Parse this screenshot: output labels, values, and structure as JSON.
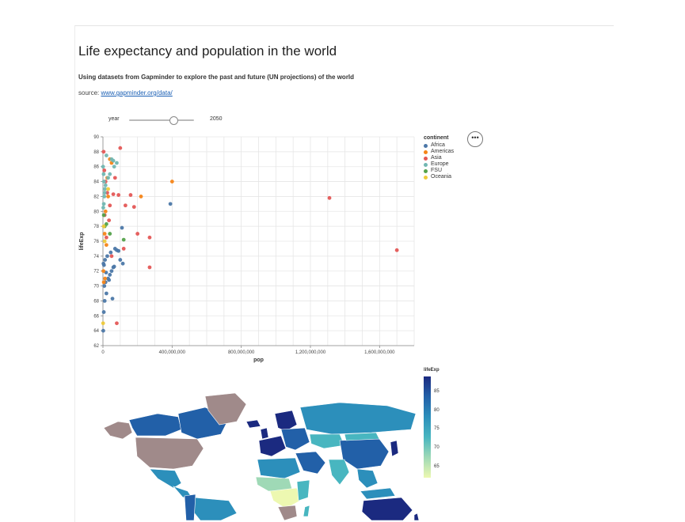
{
  "page": {
    "title": "Life expectancy and population in the world",
    "subtitle": "Using datasets from Gapminder to explore the past and future (UN projections) of the world",
    "source_prefix": "source: ",
    "source_link": "www.gapminder.org/data/"
  },
  "slider": {
    "label": "year",
    "value": "2050",
    "position_fraction": 0.68
  },
  "menu": {
    "label": "•••"
  },
  "colors": {
    "Africa": "#4c78a8",
    "Americas": "#f58518",
    "Asia": "#e45756",
    "Europe": "#72b7b2",
    "FSU": "#54a24b",
    "Oceania": "#eeca3b"
  },
  "chart_data": [
    {
      "type": "scatter",
      "xlabel": "pop",
      "ylabel": "lifeExp",
      "xlim": [
        0,
        1800000000
      ],
      "ylim": [
        62,
        90
      ],
      "x_ticks": [
        0,
        400000000,
        800000000,
        1200000000,
        1600000000
      ],
      "x_tick_labels": [
        "0",
        "400,000,000",
        "800,000,000",
        "1,200,000,000",
        "1,600,000,000"
      ],
      "y_ticks": [
        62,
        64,
        66,
        68,
        70,
        72,
        74,
        76,
        78,
        80,
        82,
        84,
        86,
        88,
        90
      ],
      "y_tick_labels": [
        "62",
        "64",
        "66",
        "68",
        "70",
        "72",
        "74",
        "76",
        "78",
        "80",
        "82",
        "84",
        "86",
        "88",
        "90"
      ],
      "grid": true,
      "legend": {
        "title": "continent",
        "placement": "right",
        "entries": [
          "Africa",
          "Americas",
          "Asia",
          "Europe",
          "FSU",
          "Oceania"
        ]
      },
      "series": [
        {
          "name": "Africa",
          "points": [
            [
              2000000,
              64.0
            ],
            [
              5000000,
              66.5
            ],
            [
              10000000,
              68
            ],
            [
              20000000,
              69
            ],
            [
              8000000,
              70
            ],
            [
              15000000,
              70.5
            ],
            [
              30000000,
              71
            ],
            [
              40000000,
              71.5
            ],
            [
              50000000,
              72
            ],
            [
              60000000,
              72.5
            ],
            [
              3000000,
              73
            ],
            [
              12000000,
              73.5
            ],
            [
              25000000,
              74
            ],
            [
              45000000,
              74.5
            ],
            [
              70000000,
              75
            ],
            [
              90000000,
              74.7
            ],
            [
              100000000,
              73.5
            ],
            [
              115000000,
              73
            ],
            [
              6000000,
              72.8
            ],
            [
              18000000,
              71.8
            ],
            [
              35000000,
              70.8
            ],
            [
              55000000,
              68.3
            ],
            [
              65000000,
              72.6
            ],
            [
              80000000,
              74.8
            ],
            [
              110000000,
              77.8
            ],
            [
              390000000,
              81
            ]
          ]
        },
        {
          "name": "Americas",
          "points": [
            [
              5000000,
              70.5
            ],
            [
              12000000,
              71
            ],
            [
              3000000,
              72
            ],
            [
              20000000,
              75.5
            ],
            [
              8000000,
              78
            ],
            [
              15000000,
              80
            ],
            [
              30000000,
              82
            ],
            [
              50000000,
              86.5
            ],
            [
              220000000,
              82
            ],
            [
              400000000,
              84
            ],
            [
              10000000,
              77
            ],
            [
              25000000,
              84.5
            ],
            [
              40000000,
              87
            ]
          ]
        },
        {
          "name": "Asia",
          "points": [
            [
              1310000000,
              81.8
            ],
            [
              1700000000,
              74.8
            ],
            [
              80000000,
              65
            ],
            [
              270000000,
              76.5
            ],
            [
              180000000,
              80.6
            ],
            [
              160000000,
              82.2
            ],
            [
              100000000,
              88.5
            ],
            [
              130000000,
              80.8
            ],
            [
              4000000,
              88
            ],
            [
              8000000,
              85.5
            ],
            [
              15000000,
              84
            ],
            [
              25000000,
              82.5
            ],
            [
              40000000,
              80.8
            ],
            [
              60000000,
              82.3
            ],
            [
              70000000,
              84.5
            ],
            [
              90000000,
              82.2
            ],
            [
              120000000,
              75
            ],
            [
              200000000,
              77
            ],
            [
              270000000,
              72.5
            ],
            [
              35000000,
              78.8
            ],
            [
              20000000,
              76.5
            ],
            [
              10000000,
              79.5
            ],
            [
              50000000,
              74
            ]
          ]
        },
        {
          "name": "Europe",
          "points": [
            [
              2000000,
              80.5
            ],
            [
              5000000,
              81
            ],
            [
              8000000,
              82
            ],
            [
              10000000,
              82.5
            ],
            [
              11000000,
              83
            ],
            [
              15000000,
              83.5
            ],
            [
              40000000,
              85
            ],
            [
              60000000,
              86.8
            ],
            [
              65000000,
              86
            ],
            [
              80000000,
              86.5
            ],
            [
              20000000,
              87.5
            ],
            [
              6000000,
              84
            ],
            [
              4000000,
              85
            ],
            [
              1000000,
              86
            ],
            [
              30000000,
              84.5
            ],
            [
              50000000,
              87
            ]
          ]
        },
        {
          "name": "FSU",
          "points": [
            [
              120000000,
              76.2
            ],
            [
              40000000,
              77
            ],
            [
              10000000,
              78
            ],
            [
              5000000,
              79.5
            ],
            [
              20000000,
              78.3
            ]
          ]
        },
        {
          "name": "Oceania",
          "points": [
            [
              1000000,
              65
            ],
            [
              30000000,
              83
            ],
            [
              5000000,
              78
            ],
            [
              10000000,
              76
            ]
          ]
        }
      ]
    },
    {
      "type": "choropleth",
      "legend": {
        "title": "lifeExp",
        "ticks": [
          85,
          80,
          75,
          70,
          65
        ],
        "tick_labels": [
          "85",
          "80",
          "75",
          "70",
          "65"
        ],
        "min": 62,
        "max": 89
      }
    }
  ]
}
